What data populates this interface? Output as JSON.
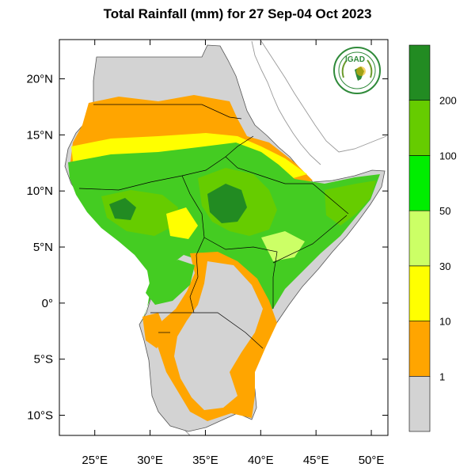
{
  "title": "Total Rainfall (mm) for 27 Sep-04 Oct 2023",
  "logo_text": "IGAD",
  "lat_ticks": [
    {
      "lat": 20,
      "label": "20°N"
    },
    {
      "lat": 15,
      "label": "15°N"
    },
    {
      "lat": 10,
      "label": "10°N"
    },
    {
      "lat": 5,
      "label": "5°N"
    },
    {
      "lat": 0,
      "label": "0°"
    },
    {
      "lat": -5,
      "label": "5°S"
    },
    {
      "lat": -10,
      "label": "10°S"
    }
  ],
  "lon_ticks": [
    {
      "lon": 25,
      "label": "25°E"
    },
    {
      "lon": 30,
      "label": "30°E"
    },
    {
      "lon": 35,
      "label": "35°E"
    },
    {
      "lon": 40,
      "label": "40°E"
    },
    {
      "lon": 45,
      "label": "45°E"
    },
    {
      "lon": 50,
      "label": "50°E"
    }
  ],
  "extent": {
    "lon_min": 21.8,
    "lon_max": 51.5,
    "lat_min": -11.8,
    "lat_max": 23.5
  },
  "legend": {
    "bins": [
      {
        "color": "#d3d3d3"
      },
      {
        "color": "#ffa500"
      },
      {
        "color": "#ffff00"
      },
      {
        "color": "#ccff66"
      },
      {
        "color": "#00ee00"
      },
      {
        "color": "#66cc00"
      },
      {
        "color": "#228b22"
      }
    ],
    "labels": [
      "1",
      "10",
      "30",
      "50",
      "100",
      "200"
    ]
  },
  "colors": {
    "no_rain": "#d3d3d3",
    "light": "#ffa500",
    "moderate": "#ffff00",
    "green_light": "#ccff66",
    "green": "#44cc22",
    "green_mid": "#66cc00",
    "green_dark": "#228b22",
    "border": "#000000",
    "coast": "#888888"
  }
}
